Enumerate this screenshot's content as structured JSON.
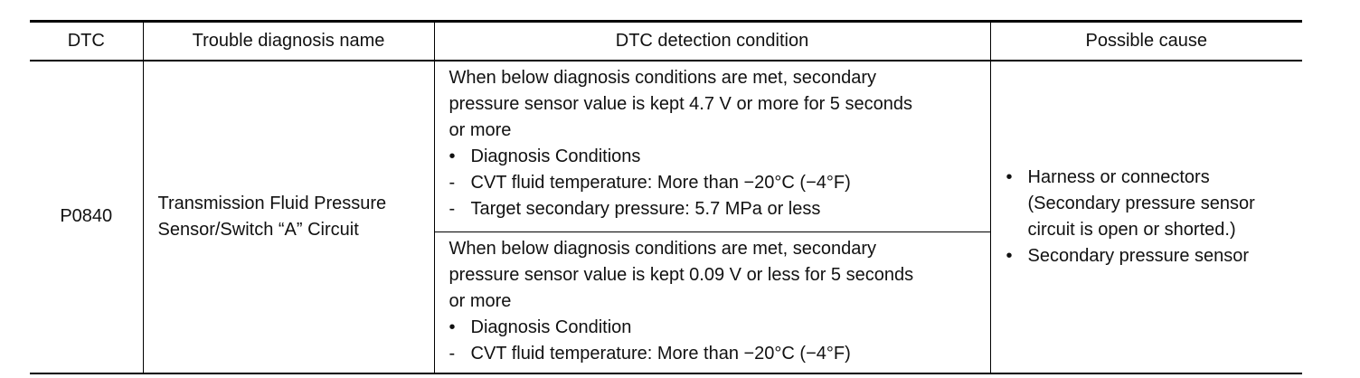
{
  "table": {
    "header": [
      "DTC",
      "Trouble diagnosis name",
      "DTC detection condition",
      "Possible cause"
    ],
    "rows": [
      {
        "dtc": "P0840",
        "name": [
          "Transmission Fluid Pressure",
          "Sensor/Switch “A” Circuit"
        ],
        "conditions": [
          {
            "text": [
              "When below diagnosis conditions are met, secondary",
              "pressure sensor value is kept 4.7 V or more for 5 seconds",
              "or more"
            ],
            "items": [
              {
                "marker": "•",
                "text": "Diagnosis Conditions"
              },
              {
                "marker": "-",
                "text": "CVT fluid temperature: More than −20°C (−4°F)"
              },
              {
                "marker": "-",
                "text": "Target secondary pressure: 5.7 MPa or less"
              }
            ]
          },
          {
            "text": [
              "When below diagnosis conditions are met, secondary",
              "pressure sensor value is kept 0.09 V or less for 5 seconds",
              "or more"
            ],
            "items": [
              {
                "marker": "•",
                "text": "Diagnosis Condition"
              },
              {
                "marker": "-",
                "text": "CVT fluid temperature: More than −20°C (−4°F)"
              }
            ]
          }
        ],
        "causes": [
          {
            "marker": "•",
            "lines": [
              "Harness or connectors",
              "(Secondary pressure sensor",
              "circuit is open or shorted.)"
            ]
          },
          {
            "marker": "•",
            "lines": [
              "Secondary pressure sensor"
            ]
          }
        ]
      }
    ]
  }
}
